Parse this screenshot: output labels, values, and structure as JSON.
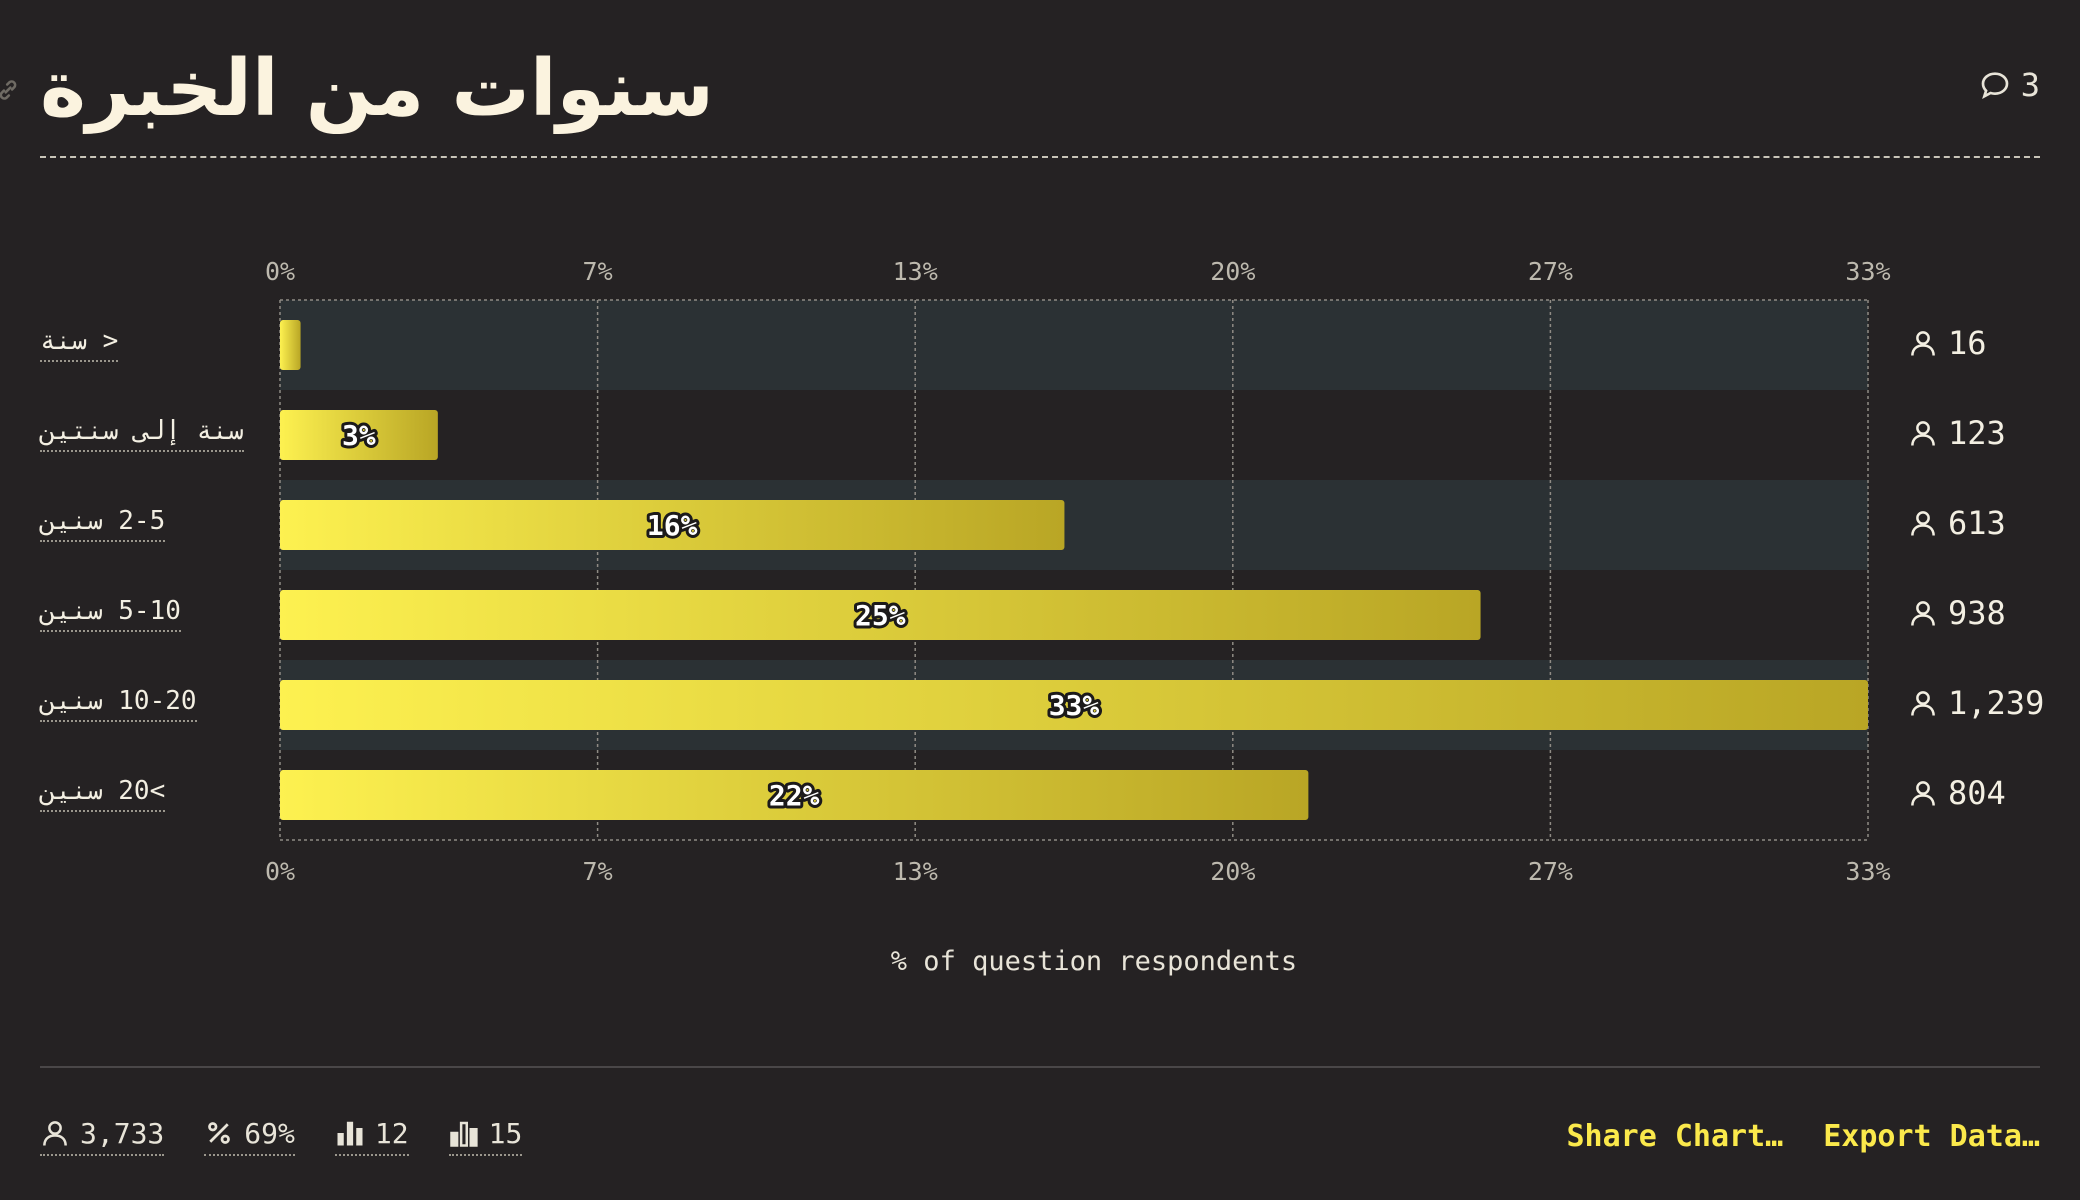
{
  "header": {
    "title": "سنوات من الخبرة",
    "comment_count": "3"
  },
  "chart_data": {
    "type": "bar",
    "orientation": "horizontal",
    "title": "سنوات من الخبرة",
    "xlabel": "% of question respondents",
    "xlim": [
      0,
      33.2
    ],
    "x_ticks": [
      0,
      6.64,
      13.28,
      19.92,
      26.56,
      33.2
    ],
    "x_tick_labels": [
      "0%",
      "7%",
      "13%",
      "20%",
      "27%",
      "33%"
    ],
    "categories": [
      "< سنة",
      "سنة إلى سنتين",
      "2-5 سنين",
      "5-10 سنين",
      "10-20 سنين",
      ">20 سنين"
    ],
    "values": [
      0.43,
      3.3,
      16.4,
      25.1,
      33.2,
      21.5
    ],
    "value_labels": [
      "",
      "3%",
      "16%",
      "25%",
      "33%",
      "22%"
    ],
    "counts": [
      "16",
      "123",
      "613",
      "938",
      "1,239",
      "804"
    ],
    "grid": true,
    "colors": {
      "bar_start": "#fdf150",
      "bar_end": "#b9a625",
      "band": "#2b3134"
    }
  },
  "footer": {
    "respondents": "3,733",
    "percent": "69%",
    "stat_a": "12",
    "stat_b": "15",
    "share_label": "Share Chart…",
    "export_label": "Export Data…"
  }
}
